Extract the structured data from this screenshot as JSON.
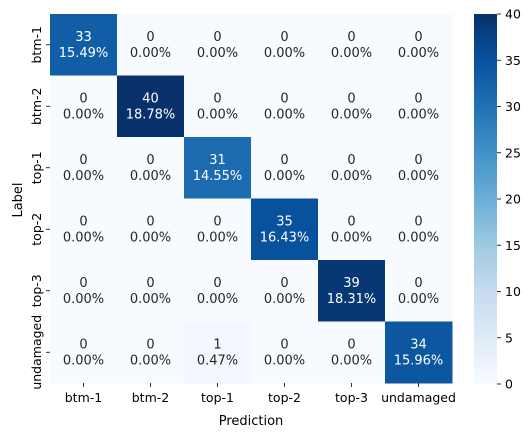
{
  "chart_data": {
    "type": "heatmap",
    "title": "",
    "xlabel": "Prediction",
    "ylabel": "Label",
    "x_categories": [
      "btm-1",
      "btm-2",
      "top-1",
      "top-2",
      "top-3",
      "undamaged"
    ],
    "y_categories": [
      "btm-1",
      "btm-2",
      "top-1",
      "top-2",
      "top-3",
      "undamaged"
    ],
    "counts": [
      [
        33,
        0,
        0,
        0,
        0,
        0
      ],
      [
        0,
        40,
        0,
        0,
        0,
        0
      ],
      [
        0,
        0,
        31,
        0,
        0,
        0
      ],
      [
        0,
        0,
        0,
        35,
        0,
        0
      ],
      [
        0,
        0,
        0,
        0,
        39,
        0
      ],
      [
        0,
        0,
        1,
        0,
        0,
        34
      ]
    ],
    "percentages": [
      [
        "15.49%",
        "0.00%",
        "0.00%",
        "0.00%",
        "0.00%",
        "0.00%"
      ],
      [
        "0.00%",
        "18.78%",
        "0.00%",
        "0.00%",
        "0.00%",
        "0.00%"
      ],
      [
        "0.00%",
        "0.00%",
        "14.55%",
        "0.00%",
        "0.00%",
        "0.00%"
      ],
      [
        "0.00%",
        "0.00%",
        "0.00%",
        "16.43%",
        "0.00%",
        "0.00%"
      ],
      [
        "0.00%",
        "0.00%",
        "0.00%",
        "0.00%",
        "18.31%",
        "0.00%"
      ],
      [
        "0.00%",
        "0.00%",
        "0.47%",
        "0.00%",
        "0.00%",
        "15.96%"
      ]
    ],
    "colorbar": {
      "min": 0,
      "max": 40,
      "ticks": [
        0,
        5,
        10,
        15,
        20,
        25,
        30,
        35,
        40
      ],
      "colormap": "Blues"
    },
    "grid": false,
    "legend": "colorbar-right"
  }
}
